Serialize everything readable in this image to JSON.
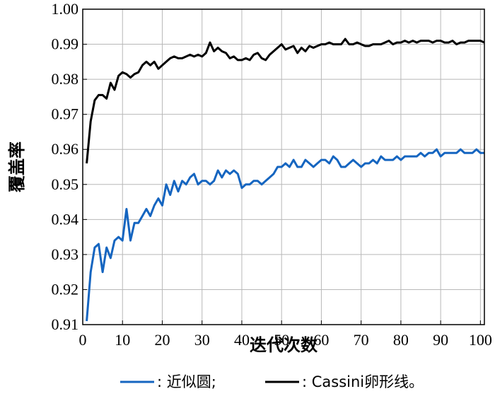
{
  "chart_data": {
    "type": "line",
    "title": "",
    "xlabel": "迭代次数",
    "ylabel": "覆盖率",
    "xlim": [
      0,
      101
    ],
    "ylim": [
      0.91,
      1.0
    ],
    "xticks": [
      0,
      10,
      20,
      30,
      40,
      50,
      60,
      70,
      80,
      90,
      100
    ],
    "xtick_labels": [
      "0",
      "10",
      "20",
      "30",
      "40",
      "50",
      "60",
      "70",
      "80",
      "90",
      "100"
    ],
    "yticks": [
      0.91,
      0.92,
      0.93,
      0.94,
      0.95,
      0.96,
      0.97,
      0.98,
      0.99,
      1.0
    ],
    "ytick_labels": [
      "0.91",
      "0.92",
      "0.93",
      "0.94",
      "0.95",
      "0.96",
      "0.97",
      "0.98",
      "0.99",
      "1.00"
    ],
    "grid": true,
    "legend_position": "bottom",
    "series": [
      {
        "name": ": 近似圆;",
        "color": "#1565c0",
        "x": [
          1,
          2,
          3,
          4,
          5,
          6,
          7,
          8,
          9,
          10,
          11,
          12,
          13,
          14,
          15,
          16,
          17,
          18,
          19,
          20,
          21,
          22,
          23,
          24,
          25,
          26,
          27,
          28,
          29,
          30,
          31,
          32,
          33,
          34,
          35,
          36,
          37,
          38,
          39,
          40,
          41,
          42,
          43,
          44,
          45,
          46,
          47,
          48,
          49,
          50,
          51,
          52,
          53,
          54,
          55,
          56,
          57,
          58,
          59,
          60,
          61,
          62,
          63,
          64,
          65,
          66,
          67,
          68,
          69,
          70,
          71,
          72,
          73,
          74,
          75,
          76,
          77,
          78,
          79,
          80,
          81,
          82,
          83,
          84,
          85,
          86,
          87,
          88,
          89,
          90,
          91,
          92,
          93,
          94,
          95,
          96,
          97,
          98,
          99,
          100,
          101
        ],
        "values": [
          0.911,
          0.925,
          0.932,
          0.933,
          0.925,
          0.932,
          0.929,
          0.934,
          0.935,
          0.934,
          0.943,
          0.934,
          0.939,
          0.939,
          0.941,
          0.943,
          0.941,
          0.944,
          0.946,
          0.944,
          0.95,
          0.947,
          0.951,
          0.948,
          0.951,
          0.95,
          0.952,
          0.953,
          0.95,
          0.951,
          0.951,
          0.95,
          0.951,
          0.954,
          0.952,
          0.954,
          0.953,
          0.954,
          0.953,
          0.949,
          0.95,
          0.95,
          0.951,
          0.951,
          0.95,
          0.951,
          0.952,
          0.953,
          0.955,
          0.955,
          0.956,
          0.955,
          0.957,
          0.955,
          0.955,
          0.957,
          0.956,
          0.955,
          0.956,
          0.957,
          0.957,
          0.956,
          0.958,
          0.957,
          0.955,
          0.955,
          0.956,
          0.957,
          0.956,
          0.955,
          0.956,
          0.956,
          0.957,
          0.956,
          0.958,
          0.957,
          0.957,
          0.957,
          0.958,
          0.957,
          0.958,
          0.958,
          0.958,
          0.958,
          0.959,
          0.958,
          0.959,
          0.959,
          0.96,
          0.958,
          0.959,
          0.959,
          0.959,
          0.959,
          0.96,
          0.959,
          0.959,
          0.959,
          0.96,
          0.959,
          0.959
        ]
      },
      {
        "name": ": Cassini卵形线。",
        "color": "#000000",
        "x": [
          1,
          2,
          3,
          4,
          5,
          6,
          7,
          8,
          9,
          10,
          11,
          12,
          13,
          14,
          15,
          16,
          17,
          18,
          19,
          20,
          21,
          22,
          23,
          24,
          25,
          26,
          27,
          28,
          29,
          30,
          31,
          32,
          33,
          34,
          35,
          36,
          37,
          38,
          39,
          40,
          41,
          42,
          43,
          44,
          45,
          46,
          47,
          48,
          49,
          50,
          51,
          52,
          53,
          54,
          55,
          56,
          57,
          58,
          59,
          60,
          61,
          62,
          63,
          64,
          65,
          66,
          67,
          68,
          69,
          70,
          71,
          72,
          73,
          74,
          75,
          76,
          77,
          78,
          79,
          80,
          81,
          82,
          83,
          84,
          85,
          86,
          87,
          88,
          89,
          90,
          91,
          92,
          93,
          94,
          95,
          96,
          97,
          98,
          99,
          100,
          101
        ],
        "values": [
          0.956,
          0.968,
          0.974,
          0.9755,
          0.9755,
          0.9745,
          0.979,
          0.977,
          0.981,
          0.982,
          0.9815,
          0.9805,
          0.9815,
          0.982,
          0.984,
          0.985,
          0.984,
          0.985,
          0.983,
          0.984,
          0.985,
          0.986,
          0.9865,
          0.986,
          0.986,
          0.9865,
          0.987,
          0.9865,
          0.987,
          0.9865,
          0.9875,
          0.9905,
          0.988,
          0.989,
          0.988,
          0.9875,
          0.986,
          0.9865,
          0.9855,
          0.9855,
          0.986,
          0.9855,
          0.987,
          0.9875,
          0.986,
          0.9855,
          0.987,
          0.988,
          0.989,
          0.99,
          0.9885,
          0.989,
          0.9895,
          0.9875,
          0.989,
          0.988,
          0.9895,
          0.989,
          0.9895,
          0.99,
          0.99,
          0.9905,
          0.99,
          0.99,
          0.99,
          0.9915,
          0.99,
          0.99,
          0.9905,
          0.99,
          0.9895,
          0.9895,
          0.99,
          0.99,
          0.99,
          0.9905,
          0.991,
          0.99,
          0.9905,
          0.9905,
          0.991,
          0.9905,
          0.991,
          0.9905,
          0.991,
          0.991,
          0.991,
          0.9905,
          0.991,
          0.991,
          0.9905,
          0.9905,
          0.991,
          0.99,
          0.9905,
          0.9905,
          0.991,
          0.991,
          0.991,
          0.991,
          0.9905
        ]
      }
    ]
  }
}
